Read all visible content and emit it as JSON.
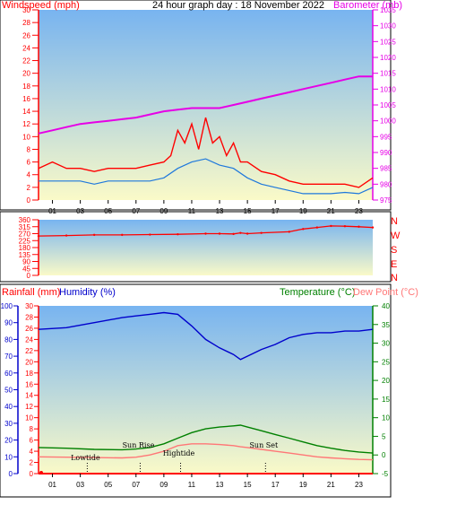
{
  "header": {
    "title": "24 hour graph day : 18 November 2022",
    "wind_label": "Windspeed (mph)",
    "baro_label": "Barometer (mb)"
  },
  "labels": {
    "rainfall": "Rainfall (mm)",
    "humidity": "Humidity (%)",
    "temperature": "Temperature (°C)",
    "dewpoint": "Dew Point (°C)",
    "dir_letters": [
      "N",
      "W",
      "S",
      "E",
      "N"
    ]
  },
  "colors": {
    "wind": "#ff0000",
    "gust": "#ff0000",
    "avg_wind": "#1e78dc",
    "barometer": "#e600e6",
    "direction": "#ff0000",
    "humidity": "#0000cc",
    "temperature": "#008000",
    "dewpoint": "#ff7777",
    "rainfall": "#ff0000",
    "bg_top": "#78b4f0",
    "bg_bottom": "#fafac8"
  },
  "chart_data": [
    {
      "type": "line",
      "name": "wind-barometer",
      "x_ticks": [
        "01",
        "03",
        "05",
        "07",
        "09",
        "11",
        "13",
        "15",
        "17",
        "19",
        "21",
        "23"
      ],
      "left_axis": {
        "label": "Windspeed (mph)",
        "ticks": [
          0,
          2,
          4,
          6,
          8,
          10,
          12,
          14,
          16,
          18,
          20,
          22,
          24,
          26,
          28,
          30
        ],
        "ylim": [
          0,
          30
        ]
      },
      "right_axis": {
        "label": "Barometer (mb)",
        "ticks": [
          975,
          980,
          985,
          990,
          995,
          1000,
          1005,
          1010,
          1015,
          1020,
          1025,
          1030,
          1035
        ],
        "ylim": [
          975,
          1035
        ]
      },
      "series": [
        {
          "key": "wind_gust",
          "axis": "left",
          "x": [
            0,
            1,
            2,
            3,
            4,
            5,
            6,
            7,
            8,
            9,
            9.5,
            10,
            10.5,
            11,
            11.5,
            12,
            12.5,
            13,
            13.5,
            14,
            14.5,
            15,
            16,
            17,
            18,
            19,
            20,
            21,
            22,
            23,
            24
          ],
          "y": [
            5,
            6,
            5,
            5,
            4.5,
            5,
            5,
            5,
            5.5,
            6,
            7,
            11,
            9,
            12,
            8,
            13,
            9,
            10,
            7,
            9,
            6,
            6,
            4.5,
            4,
            3,
            2.5,
            2.5,
            2.5,
            2.5,
            2,
            3.5
          ]
        },
        {
          "key": "wind_avg",
          "axis": "left",
          "x": [
            0,
            1,
            2,
            3,
            4,
            5,
            6,
            7,
            8,
            9,
            10,
            11,
            12,
            13,
            14,
            15,
            16,
            17,
            18,
            19,
            20,
            21,
            22,
            23,
            24
          ],
          "y": [
            3,
            3,
            3,
            3,
            2.5,
            3,
            3,
            3,
            3,
            3.5,
            5,
            6,
            6.5,
            5.5,
            5,
            3.5,
            2.5,
            2,
            1.5,
            1,
            1,
            1,
            1.2,
            1,
            2
          ]
        },
        {
          "key": "barometer",
          "axis": "right",
          "x": [
            0,
            1,
            2,
            3,
            4,
            5,
            6,
            7,
            8,
            9,
            10,
            11,
            12,
            13,
            14,
            15,
            16,
            17,
            18,
            19,
            20,
            21,
            22,
            23,
            24
          ],
          "y": [
            996,
            997,
            998,
            999,
            999.5,
            1000,
            1000.5,
            1001,
            1002,
            1003,
            1003.5,
            1004,
            1004,
            1004,
            1005,
            1006,
            1007,
            1008,
            1009,
            1010,
            1011,
            1012,
            1013,
            1014,
            1014
          ]
        }
      ]
    },
    {
      "type": "scatter",
      "name": "wind-direction",
      "y_ticks": [
        0,
        45,
        90,
        135,
        180,
        225,
        270,
        315,
        360
      ],
      "ylim": [
        0,
        360
      ],
      "series": [
        {
          "key": "direction",
          "x": [
            0,
            2,
            4,
            6,
            8,
            10,
            12,
            13,
            14,
            14.5,
            15,
            16,
            18,
            19,
            20,
            21,
            22,
            23,
            24
          ],
          "y": [
            255,
            258,
            262,
            262,
            264,
            266,
            270,
            270,
            268,
            275,
            270,
            275,
            282,
            300,
            310,
            320,
            318,
            315,
            310
          ]
        }
      ]
    },
    {
      "type": "line",
      "name": "temp-humidity-rain",
      "humidity_axis": {
        "ticks": [
          0,
          10,
          20,
          30,
          40,
          50,
          60,
          70,
          80,
          90,
          100
        ],
        "ylim": [
          0,
          100
        ]
      },
      "rain_axis": {
        "ticks": [
          0,
          2,
          4,
          6,
          8,
          10,
          12,
          14,
          16,
          18,
          20,
          22,
          24,
          26,
          28,
          30
        ],
        "ylim": [
          0,
          30
        ]
      },
      "temp_axis": {
        "ticks": [
          -5,
          0,
          5,
          10,
          15,
          20,
          25,
          30,
          35,
          40
        ],
        "ylim": [
          -5,
          40
        ]
      },
      "series": [
        {
          "key": "humidity",
          "axis": "humidity",
          "x": [
            0,
            2,
            4,
            6,
            7,
            8,
            9,
            10,
            11,
            12,
            13,
            14,
            14.5,
            15,
            16,
            17,
            18,
            19,
            20,
            21,
            22,
            23,
            24
          ],
          "y": [
            86,
            87,
            90,
            93,
            94,
            95,
            96,
            95,
            88,
            80,
            75,
            71,
            68,
            70,
            74,
            77,
            81,
            83,
            84,
            84,
            85,
            85,
            86
          ]
        },
        {
          "key": "temperature",
          "axis": "temp",
          "x": [
            0,
            2,
            4,
            6,
            7,
            8,
            9,
            10,
            11,
            12,
            13,
            14,
            14.5,
            15,
            16,
            17,
            18,
            19,
            20,
            21,
            22,
            23,
            24
          ],
          "y": [
            2,
            1.8,
            1.5,
            1.4,
            1.6,
            2,
            3,
            4.5,
            6,
            7,
            7.5,
            7.8,
            8,
            7.5,
            6.5,
            5.5,
            4.5,
            3.5,
            2.5,
            1.8,
            1.2,
            0.8,
            0.5
          ]
        },
        {
          "key": "dewpoint",
          "axis": "temp",
          "x": [
            0,
            2,
            4,
            6,
            7,
            8,
            9,
            10,
            11,
            12,
            13,
            14,
            14.5,
            15,
            16,
            17,
            18,
            19,
            20,
            21,
            22,
            23,
            24
          ],
          "y": [
            -0.5,
            -0.6,
            -0.7,
            -0.8,
            -0.6,
            0,
            1,
            2.5,
            3,
            3,
            2.8,
            2.5,
            2.2,
            2,
            1.5,
            1,
            0.5,
            0,
            -0.5,
            -0.8,
            -1,
            -1.2,
            -1.3
          ]
        },
        {
          "key": "rainfall",
          "axis": "rain",
          "x": [
            0,
            24
          ],
          "y": [
            0,
            0
          ]
        }
      ],
      "annotations": [
        {
          "text": "Lowtide",
          "x": 3.5
        },
        {
          "text": "Sun Rise",
          "x": 7.3
        },
        {
          "text": "Hightide",
          "x": 10.2
        },
        {
          "text": "Sun Set",
          "x": 16.3
        }
      ]
    }
  ]
}
